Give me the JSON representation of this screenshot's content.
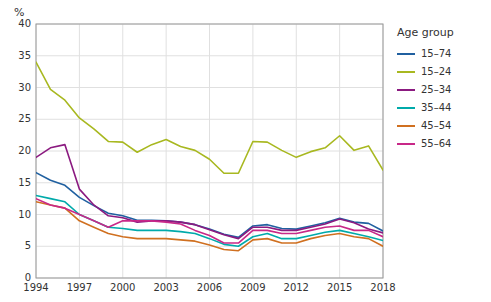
{
  "chart_data": {
    "type": "line",
    "ylabel": "%",
    "legend_title": "Age group",
    "x": [
      1994,
      1995,
      1996,
      1997,
      1998,
      1999,
      2000,
      2001,
      2002,
      2003,
      2004,
      2005,
      2006,
      2007,
      2008,
      2009,
      2010,
      2011,
      2012,
      2013,
      2014,
      2015,
      2016,
      2017,
      2018
    ],
    "series": [
      {
        "name": "15–74",
        "color": "#2060a0",
        "values": [
          16.6,
          15.4,
          14.6,
          12.7,
          11.4,
          10.2,
          9.8,
          9.1,
          9.1,
          9.0,
          8.8,
          8.4,
          7.7,
          6.9,
          6.4,
          8.2,
          8.4,
          7.8,
          7.7,
          8.2,
          8.7,
          9.4,
          8.8,
          8.6,
          7.4
        ]
      },
      {
        "name": "15–24",
        "color": "#a8b820",
        "values": [
          34.0,
          29.7,
          28.0,
          25.2,
          23.5,
          21.5,
          21.4,
          19.8,
          21.0,
          21.8,
          20.7,
          20.1,
          18.7,
          16.5,
          16.5,
          21.5,
          21.4,
          20.1,
          19.0,
          19.9,
          20.5,
          22.4,
          20.1,
          20.8,
          17.0
        ]
      },
      {
        "name": "25–34",
        "color": "#8b1a80",
        "values": [
          19.0,
          20.5,
          21.0,
          14.0,
          11.5,
          9.8,
          9.5,
          8.8,
          9.0,
          9.0,
          8.8,
          8.4,
          7.6,
          6.8,
          6.2,
          8.0,
          8.0,
          7.5,
          7.5,
          8.0,
          8.5,
          9.3,
          8.7,
          7.7,
          7.1
        ]
      },
      {
        "name": "35–44",
        "color": "#00aaaa",
        "values": [
          13.0,
          12.5,
          12.0,
          10.0,
          9.0,
          8.0,
          7.8,
          7.5,
          7.5,
          7.5,
          7.3,
          7.0,
          6.2,
          5.3,
          5.0,
          6.5,
          7.0,
          6.2,
          6.2,
          6.7,
          7.2,
          7.5,
          7.0,
          6.5,
          5.9
        ]
      },
      {
        "name": "45–54",
        "color": "#d07020",
        "values": [
          12.0,
          11.5,
          11.0,
          9.0,
          8.0,
          7.0,
          6.5,
          6.2,
          6.2,
          6.2,
          6.0,
          5.8,
          5.2,
          4.5,
          4.3,
          6.0,
          6.2,
          5.5,
          5.5,
          6.2,
          6.7,
          7.0,
          6.5,
          6.2,
          5.0
        ]
      },
      {
        "name": "55–64",
        "color": "#c82888",
        "values": [
          12.5,
          11.5,
          11.0,
          10.0,
          9.0,
          8.0,
          9.0,
          9.0,
          9.0,
          8.8,
          8.5,
          7.5,
          6.7,
          5.5,
          5.5,
          7.5,
          7.5,
          7.0,
          7.0,
          7.5,
          8.0,
          8.2,
          7.5,
          7.5,
          6.5
        ]
      }
    ],
    "xlim": [
      1994,
      2018
    ],
    "xticks": [
      1994,
      1997,
      2000,
      2003,
      2006,
      2009,
      2012,
      2015,
      2018
    ],
    "ylim": [
      0,
      40
    ],
    "yticks": [
      0,
      5,
      10,
      15,
      20,
      25,
      30,
      35,
      40
    ],
    "grid": true,
    "legend": "right"
  }
}
